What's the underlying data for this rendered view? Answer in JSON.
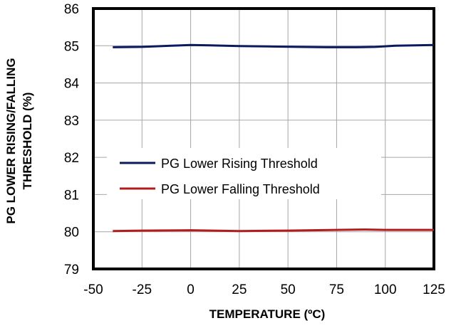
{
  "chart_data": {
    "type": "line",
    "xlabel": "TEMPERATURE  (ºC)",
    "ylabel_lines": [
      "PG LOWER RISING/FALLING",
      "THRESHOLD  (%)"
    ],
    "xlim": [
      -50,
      125
    ],
    "ylim": [
      79,
      86
    ],
    "x_ticks": [
      "-50",
      "-25",
      "0",
      "25",
      "50",
      "75",
      "100",
      "125"
    ],
    "y_ticks": [
      "79",
      "80",
      "81",
      "82",
      "83",
      "84",
      "85",
      "86"
    ],
    "grid": true,
    "legend_position": "center-left",
    "series": [
      {
        "name": "PG Lower Rising Threshold",
        "color": "#0b1a5c",
        "x": [
          -40,
          -25,
          -10,
          0,
          10,
          25,
          40,
          55,
          70,
          85,
          95,
          105,
          115,
          125
        ],
        "y": [
          84.96,
          84.97,
          85.0,
          85.02,
          85.01,
          84.99,
          84.98,
          84.97,
          84.96,
          84.96,
          84.97,
          85.0,
          85.01,
          85.02
        ]
      },
      {
        "name": "PG Lower Falling Threshold",
        "color": "#b11d1d",
        "x": [
          -40,
          -25,
          0,
          25,
          50,
          75,
          90,
          100,
          125
        ],
        "y": [
          80.02,
          80.03,
          80.04,
          80.02,
          80.03,
          80.05,
          80.06,
          80.05,
          80.05
        ]
      }
    ]
  }
}
